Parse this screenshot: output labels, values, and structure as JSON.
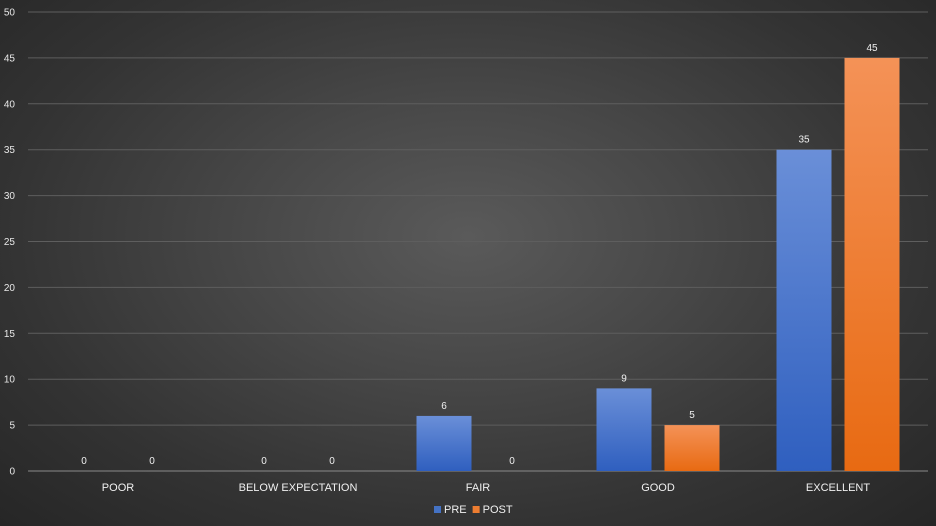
{
  "chart_data": {
    "type": "bar",
    "title": "",
    "xlabel": "",
    "ylabel": "",
    "categories": [
      "POOR",
      "BELOW EXPECTATION",
      "FAIR",
      "GOOD",
      "EXCELLENT"
    ],
    "series": [
      {
        "name": "PRE",
        "values": [
          0,
          0,
          6,
          9,
          35
        ],
        "color": "#4472c4"
      },
      {
        "name": "POST",
        "values": [
          0,
          0,
          0,
          5,
          45
        ],
        "color": "#ed7d31"
      }
    ],
    "ylim": [
      0,
      50
    ],
    "yticks": [
      0,
      5,
      10,
      15,
      20,
      25,
      30,
      35,
      40,
      45,
      50
    ],
    "grid": true,
    "legend": "bottom-center",
    "data_labels": true
  }
}
